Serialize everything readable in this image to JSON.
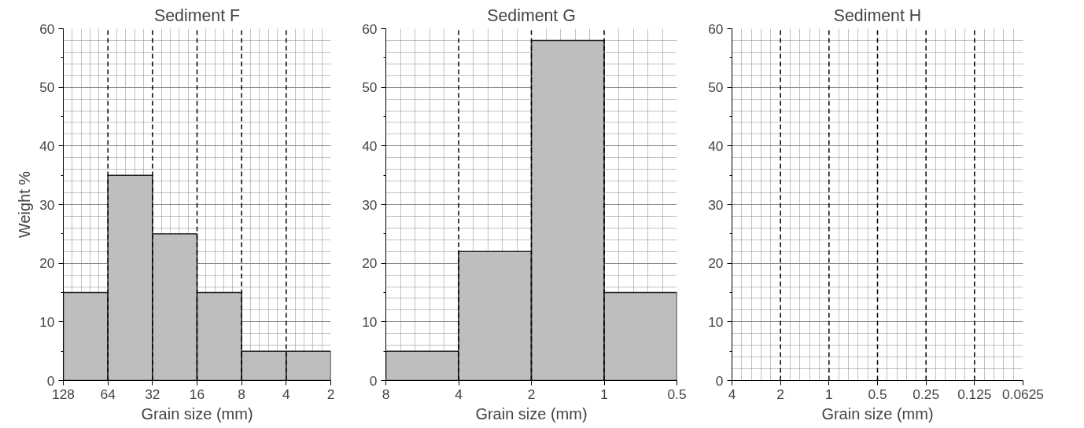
{
  "chart_data": [
    {
      "type": "histogram",
      "title": "Sediment F",
      "xlabel": "Grain size (mm)",
      "ylabel": "Weight %",
      "bins": [
        128,
        64,
        32,
        16,
        8,
        4,
        2
      ],
      "values": [
        15,
        35,
        25,
        15,
        5,
        5
      ],
      "color": "#bcbec0",
      "log": "x",
      "xlim": [
        128,
        2
      ],
      "xticks": [
        128,
        64,
        32,
        16,
        8,
        4,
        2
      ],
      "ylim": [
        0,
        60
      ],
      "yticks": [
        0,
        10,
        20,
        30,
        40,
        50,
        60
      ],
      "grid": true,
      "ref_lines": [
        {
          "axis": "x",
          "value": 64,
          "line_style": "dashed",
          "color": "#000000"
        },
        {
          "axis": "x",
          "value": 32,
          "line_style": "dashed",
          "color": "#000000"
        },
        {
          "axis": "x",
          "value": 16,
          "line_style": "dashed",
          "color": "#000000"
        },
        {
          "axis": "x",
          "value": 8,
          "line_style": "dashed",
          "color": "#000000"
        },
        {
          "axis": "x",
          "value": 4,
          "line_style": "dashed",
          "color": "#000000"
        }
      ]
    },
    {
      "type": "histogram",
      "title": "Sediment G",
      "xlabel": "Grain size (mm)",
      "bins": [
        8,
        4,
        2,
        1,
        0.5
      ],
      "values": [
        5,
        22,
        58,
        15
      ],
      "color": "#bcbec0",
      "log": "x",
      "xlim": [
        8,
        0.5
      ],
      "xticks": [
        8,
        4,
        2,
        1,
        0.5
      ],
      "ylim": [
        0,
        60
      ],
      "yticks": [
        0,
        10,
        20,
        30,
        40,
        50,
        60
      ],
      "grid": true,
      "ref_lines": [
        {
          "axis": "x",
          "value": 4,
          "line_style": "dashed",
          "color": "#000000"
        },
        {
          "axis": "x",
          "value": 2,
          "line_style": "dashed",
          "color": "#000000"
        },
        {
          "axis": "x",
          "value": 1,
          "line_style": "dashed",
          "color": "#000000"
        }
      ]
    },
    {
      "type": "histogram",
      "title": "Sediment H",
      "xlabel": "Grain size (mm)",
      "log": "x",
      "xlim": [
        4,
        0.0625
      ],
      "xticks": [
        4,
        2,
        1,
        0.5,
        0.25,
        0.125,
        0.0625
      ],
      "ylim": [
        0,
        60
      ],
      "yticks": [
        0,
        10,
        20,
        30,
        40,
        50,
        60
      ],
      "grid": true,
      "ref_lines": [
        {
          "axis": "x",
          "value": 2,
          "line_style": "dashed",
          "color": "#000000"
        },
        {
          "axis": "x",
          "value": 1,
          "line_style": "dashed",
          "color": "#000000"
        },
        {
          "axis": "x",
          "value": 0.5,
          "line_style": "dashed",
          "color": "#000000"
        },
        {
          "axis": "x",
          "value": 0.25,
          "line_style": "dashed",
          "color": "#000000"
        },
        {
          "axis": "x",
          "value": 0.125,
          "line_style": "dashed",
          "color": "#000000"
        }
      ]
    }
  ]
}
